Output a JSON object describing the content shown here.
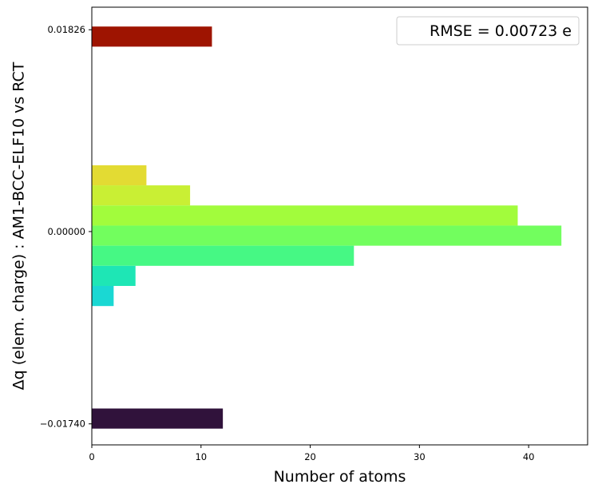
{
  "chart_data": {
    "type": "bar",
    "orientation": "horizontal",
    "xlabel": "Number of atoms",
    "ylabel": "Δq (elem. charge) : AM1-BCC-ELF10 vs RCT",
    "xlim": [
      0,
      45.4
    ],
    "xticks": [
      0,
      10,
      20,
      30,
      40
    ],
    "xtick_labels": [
      "0",
      "10",
      "20",
      "30",
      "40"
    ],
    "ylim": [
      -0.0193,
      0.0203
    ],
    "yticks": [
      0.01826,
      0.0,
      -0.0174
    ],
    "ytick_labels": [
      "0.01826",
      "0.00000",
      "−0.01740"
    ],
    "legend_text": "RMSE = 0.00723 e",
    "legend_placement": "upper-right",
    "bars": [
      {
        "y0": 0.01673,
        "y1": 0.01855,
        "count": 11,
        "color": "#9e1401"
      },
      {
        "y0": 0.00418,
        "y1": 0.006,
        "count": 5,
        "color": "#e3db33"
      },
      {
        "y0": 0.00236,
        "y1": 0.00418,
        "count": 9,
        "color": "#c9ef34"
      },
      {
        "y0": 0.00054,
        "y1": 0.00236,
        "count": 39,
        "color": "#a2fc3c"
      },
      {
        "y0": -0.00128,
        "y1": 0.00054,
        "count": 43,
        "color": "#72fe5e"
      },
      {
        "y0": -0.0031,
        "y1": -0.00128,
        "count": 24,
        "color": "#46f884"
      },
      {
        "y0": -0.00492,
        "y1": -0.0031,
        "count": 4,
        "color": "#1ee6b5"
      },
      {
        "y0": -0.00674,
        "y1": -0.00492,
        "count": 2,
        "color": "#1ad8d3"
      },
      {
        "y0": -0.01783,
        "y1": -0.01601,
        "count": 12,
        "color": "#30123b"
      }
    ]
  }
}
